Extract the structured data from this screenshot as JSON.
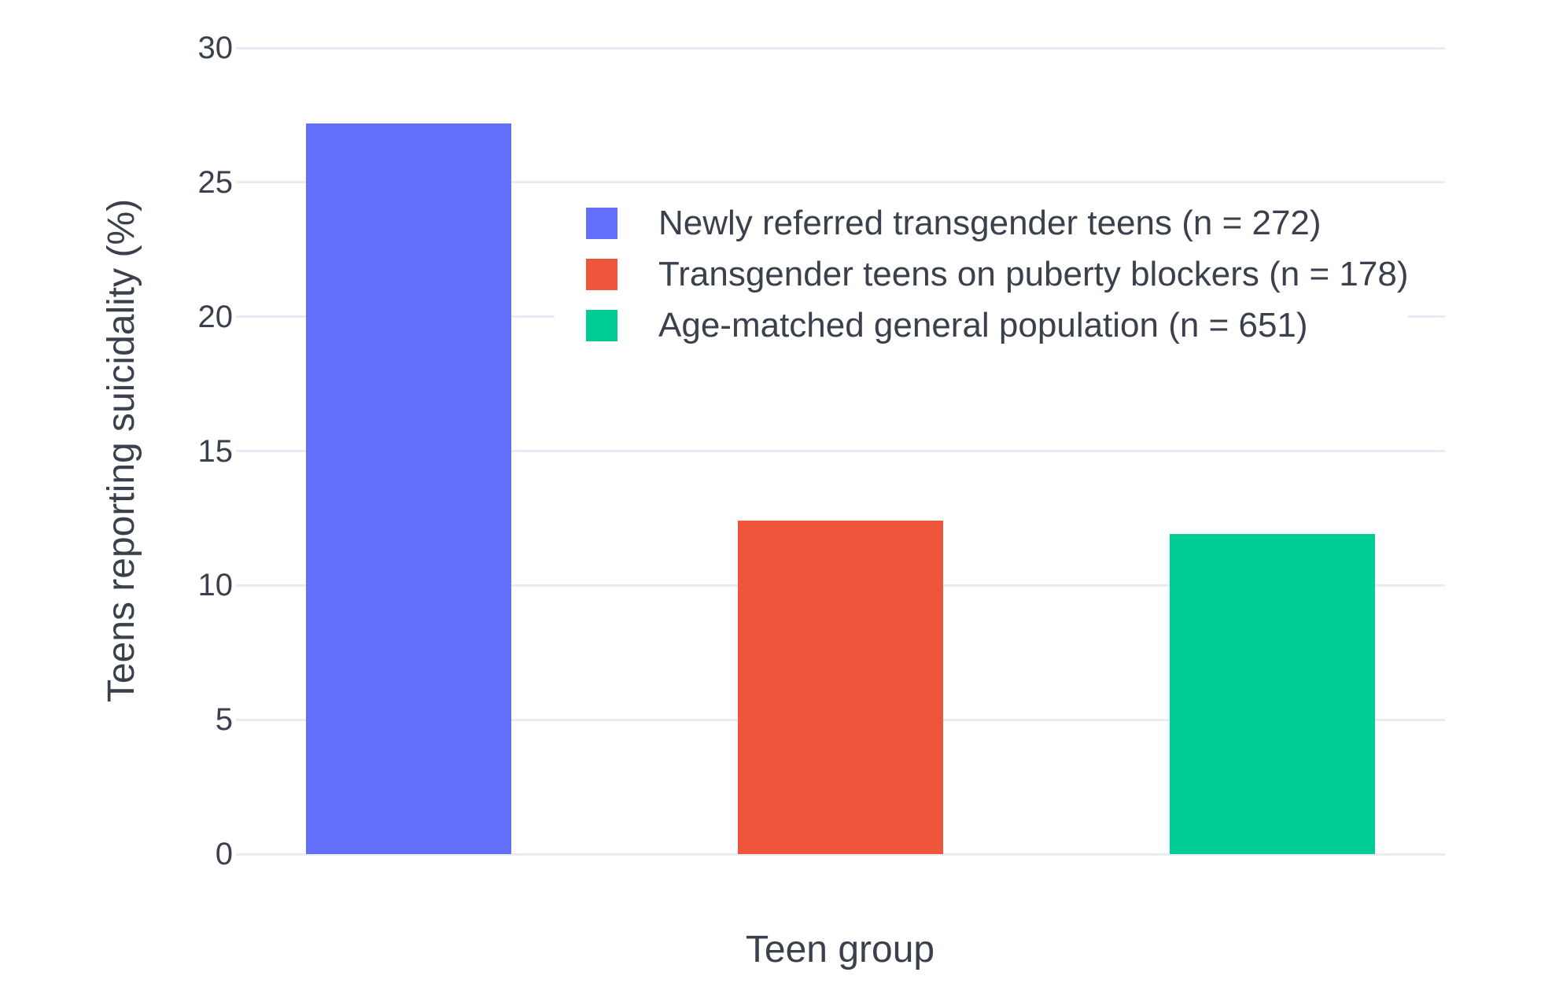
{
  "chart_data": {
    "type": "bar",
    "title": "",
    "xlabel": "Teen group",
    "ylabel": "Teens reporting suicidality (%)",
    "ylim": [
      0,
      30
    ],
    "yticks": [
      0,
      5,
      10,
      15,
      20,
      25,
      30
    ],
    "grid": true,
    "background": "#ffffff",
    "gridline_color": "#e8ecf4",
    "text_color": "#3b414c",
    "legend_position": "inside-top-center",
    "series": [
      {
        "key": "newly-referred-transgender-teens",
        "name": "Newly referred transgender teens (n = 272)",
        "value": 27.2,
        "color": "#636efa"
      },
      {
        "key": "transgender-teens-on-puberty-blockers",
        "name": "Transgender teens on puberty blockers (n = 178)",
        "value": 12.4,
        "color": "#ef553b"
      },
      {
        "key": "age-matched-general-population",
        "name": "Age-matched general population (n = 651)",
        "value": 11.9,
        "color": "#00cc96"
      }
    ]
  }
}
